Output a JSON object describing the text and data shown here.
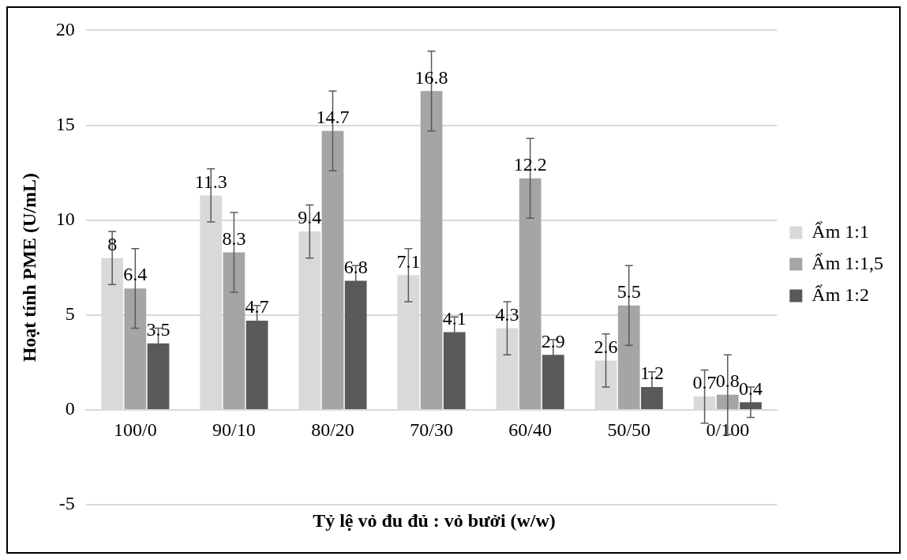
{
  "chart_data": {
    "type": "bar",
    "xlabel": "Tỷ lệ vỏ đu đủ : vỏ bưởi (w/w)",
    "ylabel": "Hoạt tính PME (U/mL)",
    "categories": [
      "100/0",
      "90/10",
      "80/20",
      "70/30",
      "60/40",
      "50/50",
      "0/100"
    ],
    "series": [
      {
        "name": "Ẩm 1:1",
        "color": "#d9d9d9",
        "values": [
          8,
          11.3,
          9.4,
          7.1,
          4.3,
          2.6,
          0.7
        ],
        "errors": [
          1.4,
          1.4,
          1.4,
          1.4,
          1.4,
          1.4,
          1.4
        ]
      },
      {
        "name": "Ẩm 1:1,5",
        "color": "#a5a5a5",
        "values": [
          6.4,
          8.3,
          14.7,
          16.8,
          12.2,
          5.5,
          0.8
        ],
        "errors": [
          2.1,
          2.1,
          2.1,
          2.1,
          2.1,
          2.1,
          2.1
        ]
      },
      {
        "name": "Ẩm 1:2",
        "color": "#595959",
        "values": [
          3.5,
          4.7,
          6.8,
          4.1,
          2.9,
          1.2,
          0.4
        ],
        "errors": [
          0.8,
          0.8,
          0.8,
          0.8,
          0.8,
          0.8,
          0.8
        ]
      }
    ],
    "ylim": [
      -5,
      20
    ],
    "yticks": [
      -5,
      0,
      5,
      10,
      15,
      20
    ],
    "grid": "y",
    "legend": "right",
    "data_labels": true
  }
}
